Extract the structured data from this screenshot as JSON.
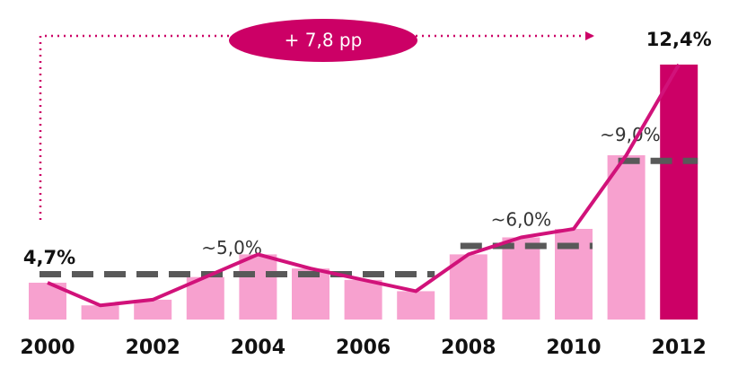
{
  "chart_data": {
    "type": "bar",
    "annotation": "+ 7,8 pp",
    "categories": [
      "2000",
      null,
      "2002",
      null,
      "2004",
      null,
      "2006",
      null,
      "2008",
      null,
      "2010",
      null,
      "2012"
    ],
    "values": [
      4.7,
      3.9,
      4.1,
      4.9,
      5.7,
      5.2,
      4.8,
      4.4,
      5.7,
      6.3,
      6.6,
      9.2,
      12.4
    ],
    "value_labels": [
      "4,7%",
      null,
      null,
      null,
      null,
      null,
      null,
      null,
      null,
      null,
      null,
      null,
      "12,4%"
    ],
    "color": "#f7a1cf",
    "highlight_color": "#cc0066",
    "line_color": "#d1127a",
    "ylim": [
      3.4,
      13.0
    ],
    "references": [
      {
        "label": "~5,0%",
        "value": 5.0,
        "from": 0,
        "to": 7
      },
      {
        "label": "~6,0%",
        "value": 6.0,
        "from": 8,
        "to": 10
      },
      {
        "label": "~9,0%",
        "value": 9.0,
        "from": 11,
        "to": 12
      }
    ]
  }
}
